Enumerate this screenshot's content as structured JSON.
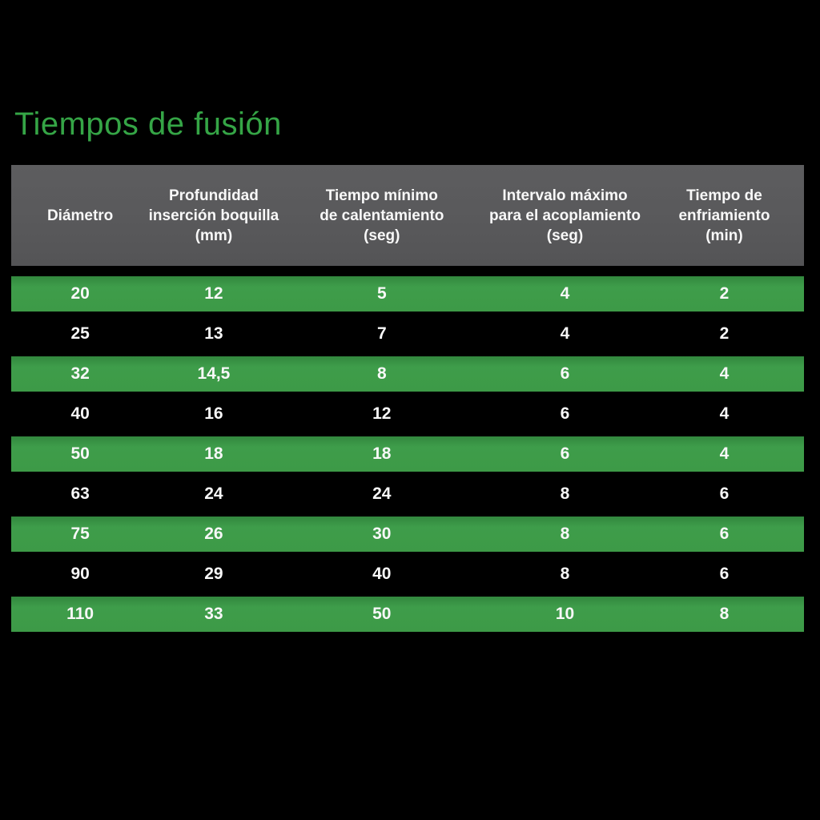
{
  "title": "Tiempos de fusión",
  "colors": {
    "background": "#000000",
    "title_green": "#35a546",
    "row_green": "#3d9a47",
    "header_gray": "#595959",
    "text_white": "#f8f8f8"
  },
  "table": {
    "header": [
      {
        "lines": [
          "Diámetro"
        ]
      },
      {
        "lines": [
          "Profundidad",
          "inserción boquilla",
          "(mm)"
        ]
      },
      {
        "lines": [
          "Tiempo mínimo",
          "de calentamiento",
          "(seg)"
        ]
      },
      {
        "lines": [
          "Intervalo máximo",
          "para el acoplamiento",
          "(seg)"
        ]
      },
      {
        "lines": [
          "Tiempo de",
          "enfriamiento",
          "(min)"
        ]
      }
    ],
    "rows": [
      [
        "20",
        "12",
        "5",
        "4",
        "2"
      ],
      [
        "25",
        "13",
        "7",
        "4",
        "2"
      ],
      [
        "32",
        "14,5",
        "8",
        "6",
        "4"
      ],
      [
        "40",
        "16",
        "12",
        "6",
        "4"
      ],
      [
        "50",
        "18",
        "18",
        "6",
        "4"
      ],
      [
        "63",
        "24",
        "24",
        "8",
        "6"
      ],
      [
        "75",
        "26",
        "30",
        "8",
        "6"
      ],
      [
        "90",
        "29",
        "40",
        "8",
        "6"
      ],
      [
        "110",
        "33",
        "50",
        "10",
        "8"
      ]
    ]
  },
  "chart_data": {
    "type": "table",
    "title": "Tiempos de fusión",
    "columns": [
      "Diámetro",
      "Profundidad inserción boquilla (mm)",
      "Tiempo mínimo de calentamiento (seg)",
      "Intervalo máximo para el acoplamiento (seg)",
      "Tiempo de enfriamiento (min)"
    ],
    "rows": [
      [
        20,
        12,
        5,
        4,
        2
      ],
      [
        25,
        13,
        7,
        4,
        2
      ],
      [
        32,
        14.5,
        8,
        6,
        4
      ],
      [
        40,
        16,
        12,
        6,
        4
      ],
      [
        50,
        18,
        18,
        6,
        4
      ],
      [
        63,
        24,
        24,
        8,
        6
      ],
      [
        75,
        26,
        30,
        8,
        6
      ],
      [
        90,
        29,
        40,
        8,
        6
      ],
      [
        110,
        33,
        50,
        10,
        8
      ]
    ],
    "layout": {
      "striped": "alternating green rows starting with first data row",
      "header_background": "#595959",
      "stripe_background": "#3d9a47",
      "page_background": "#000000"
    }
  }
}
